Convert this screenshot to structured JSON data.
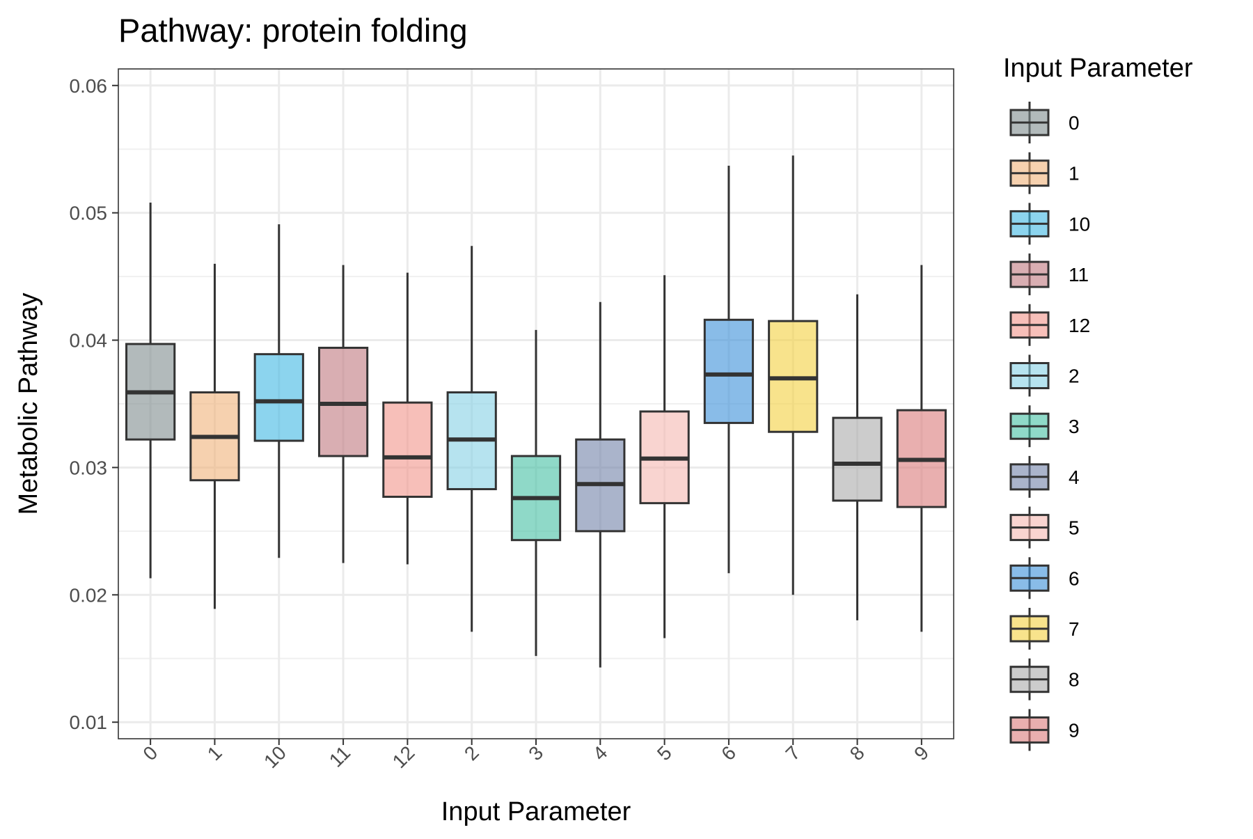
{
  "chart_data": {
    "type": "boxplot",
    "title": "Pathway: protein folding",
    "xlabel": "Input Parameter",
    "ylabel": "Metabolic Pathway",
    "ylim": [
      0.0087,
      0.0613
    ],
    "yticks": [
      0.01,
      0.02,
      0.03,
      0.04,
      0.05,
      0.06
    ],
    "ytick_labels": [
      "0.01",
      "0.02",
      "0.03",
      "0.04",
      "0.05",
      "0.06"
    ],
    "grid": true,
    "legend": {
      "title": "Input Parameter",
      "position": "right"
    },
    "categories": [
      "0",
      "1",
      "10",
      "11",
      "12",
      "2",
      "3",
      "4",
      "5",
      "6",
      "7",
      "8",
      "9"
    ],
    "colors": [
      "#7f8c8d",
      "#f0b27a",
      "#3fb7e3",
      "#c0787f",
      "#f1948a",
      "#85d1e5",
      "#45c0a3",
      "#7282a8",
      "#f5b7b1",
      "#3b8fd8",
      "#f4d03f",
      "#aaaaaa",
      "#db7a7a"
    ],
    "boxes": [
      {
        "category": "0",
        "min": 0.0213,
        "q1": 0.0322,
        "median": 0.0359,
        "q3": 0.0397,
        "max": 0.0508
      },
      {
        "category": "1",
        "min": 0.0189,
        "q1": 0.029,
        "median": 0.0324,
        "q3": 0.0359,
        "max": 0.046
      },
      {
        "category": "10",
        "min": 0.0229,
        "q1": 0.0321,
        "median": 0.0352,
        "q3": 0.0389,
        "max": 0.0491
      },
      {
        "category": "11",
        "min": 0.0225,
        "q1": 0.0309,
        "median": 0.035,
        "q3": 0.0394,
        "max": 0.0459
      },
      {
        "category": "12",
        "min": 0.0224,
        "q1": 0.0277,
        "median": 0.0308,
        "q3": 0.0351,
        "max": 0.0453
      },
      {
        "category": "2",
        "min": 0.0171,
        "q1": 0.0283,
        "median": 0.0322,
        "q3": 0.0359,
        "max": 0.0474
      },
      {
        "category": "3",
        "min": 0.0152,
        "q1": 0.0243,
        "median": 0.0276,
        "q3": 0.0309,
        "max": 0.0408
      },
      {
        "category": "4",
        "min": 0.0143,
        "q1": 0.025,
        "median": 0.0287,
        "q3": 0.0322,
        "max": 0.043
      },
      {
        "category": "5",
        "min": 0.0166,
        "q1": 0.0272,
        "median": 0.0307,
        "q3": 0.0344,
        "max": 0.0451
      },
      {
        "category": "6",
        "min": 0.0217,
        "q1": 0.0335,
        "median": 0.0373,
        "q3": 0.0416,
        "max": 0.0537
      },
      {
        "category": "7",
        "min": 0.02,
        "q1": 0.0328,
        "median": 0.037,
        "q3": 0.0415,
        "max": 0.0545
      },
      {
        "category": "8",
        "min": 0.018,
        "q1": 0.0274,
        "median": 0.0303,
        "q3": 0.0339,
        "max": 0.0436
      },
      {
        "category": "9",
        "min": 0.0171,
        "q1": 0.0269,
        "median": 0.0306,
        "q3": 0.0345,
        "max": 0.0459
      }
    ]
  }
}
